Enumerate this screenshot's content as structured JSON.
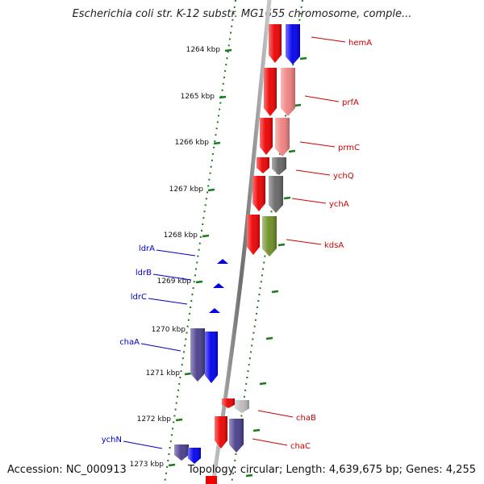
{
  "title": "Escherichia coli str. K-12 substr. MG1655 chromosome, comple...",
  "footer": {
    "accession": "Accession: NC_000913",
    "summary": "Topology: circular; Length: 4,639,675 bp; Genes: 4,255"
  },
  "colors": {
    "backbone": "#808080",
    "tick": "#1a7a1a",
    "right_label": "#cc0000",
    "left_label": "#0000cc"
  },
  "ticks": [
    {
      "label": "1264 kbp"
    },
    {
      "label": "1265 kbp"
    },
    {
      "label": "1266 kbp"
    },
    {
      "label": "1267 kbp"
    },
    {
      "label": "1268 kbp"
    },
    {
      "label": "1269 kbp"
    },
    {
      "label": "1270 kbp"
    },
    {
      "label": "1271 kbp"
    },
    {
      "label": "1272 kbp"
    },
    {
      "label": "1273 kbp"
    }
  ],
  "genes_right": [
    {
      "label": "hemA",
      "color": "#ee0000",
      "track_color": "#0000ee"
    },
    {
      "label": "prfA",
      "color": "#ee0000",
      "track_color": "#f08080"
    },
    {
      "label": "prmC",
      "color": "#ee0000",
      "track_color": "#f08080"
    },
    {
      "label": "ychQ",
      "color": "#ee0000",
      "track_color": "#666666"
    },
    {
      "label": "ychA",
      "color": "#ee0000",
      "track_color": "#666666"
    },
    {
      "label": "kdsA",
      "color": "#ee0000",
      "track_color": "#6b8e23"
    },
    {
      "label": "chaB",
      "color": "#ee0000",
      "track_color": "#bbbbbb"
    },
    {
      "label": "chaC",
      "color": "#ee0000",
      "track_color": "#483d8b"
    }
  ],
  "genes_left": [
    {
      "label": "ldrA",
      "color": "#0000ee"
    },
    {
      "label": "ldrB",
      "color": "#0000ee"
    },
    {
      "label": "ldrC",
      "color": "#0000ee"
    },
    {
      "label": "chaA",
      "color": "#0000ee",
      "track_color": "#483d8b"
    },
    {
      "label": "ychN",
      "color": "#0000ee",
      "track_color": "#483d8b"
    }
  ]
}
